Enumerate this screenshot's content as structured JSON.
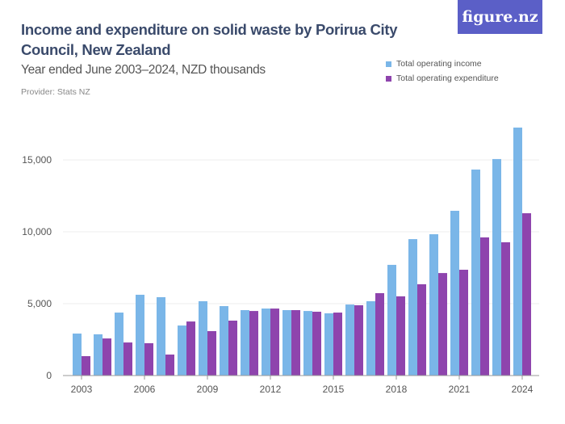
{
  "header": {
    "title": "Income and expenditure on solid waste by Porirua City Council, New Zealand",
    "subtitle": "Year ended June 2003–2024, NZD thousands",
    "provider": "Provider: Stats NZ",
    "logo": "figure.nz"
  },
  "colors": {
    "income": "#7ab6e8",
    "expenditure": "#8e44ad",
    "logo_bg": "#5b5fc7"
  },
  "chart_data": {
    "type": "bar",
    "title": "Income and expenditure on solid waste by Porirua City Council, New Zealand",
    "subtitle": "Year ended June 2003–2024, NZD thousands",
    "categories": [
      "2003",
      "2004",
      "2005",
      "2006",
      "2007",
      "2008",
      "2009",
      "2010",
      "2011",
      "2012",
      "2013",
      "2014",
      "2015",
      "2016",
      "2017",
      "2018",
      "2019",
      "2020",
      "2021",
      "2022",
      "2023",
      "2024"
    ],
    "x_tick_labels": [
      "2003",
      "2006",
      "2009",
      "2012",
      "2015",
      "2018",
      "2021",
      "2024"
    ],
    "y_tick_labels": [
      "0",
      "5,000",
      "10,000",
      "15,000"
    ],
    "y_ticks": [
      0,
      5000,
      10000,
      15000
    ],
    "ylim": [
      0,
      18000
    ],
    "legend_position": "top-right",
    "series": [
      {
        "name": "Total operating income",
        "values": [
          2920,
          2870,
          4380,
          5620,
          5450,
          3480,
          5170,
          4830,
          4550,
          4660,
          4550,
          4490,
          4330,
          4940,
          5170,
          7700,
          9490,
          9830,
          11460,
          14330,
          15060,
          17250
        ]
      },
      {
        "name": "Total operating expenditure",
        "values": [
          1350,
          2580,
          2300,
          2250,
          1460,
          3760,
          3090,
          3820,
          4490,
          4660,
          4550,
          4440,
          4380,
          4890,
          5730,
          5510,
          6350,
          7130,
          7360,
          9610,
          9270,
          11290
        ]
      }
    ]
  }
}
